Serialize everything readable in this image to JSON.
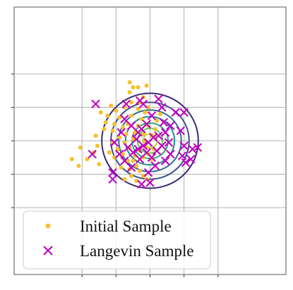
{
  "chart_data": {
    "type": "scatter",
    "title": "",
    "xlabel": "",
    "ylabel": "",
    "xlim": [
      -4,
      4
    ],
    "ylim": [
      -4,
      4
    ],
    "xticks": [
      -2,
      -1,
      0,
      1,
      2
    ],
    "yticks": [
      -2,
      -1,
      0,
      1,
      2
    ],
    "grid": true,
    "legend_position": "lower-left",
    "contours": {
      "center": [
        0,
        0
      ],
      "levels": [
        "#472c7a",
        "#3b518b",
        "#2c718e",
        "#21908d",
        "#27ad81",
        "#5cc863",
        "#aadc32"
      ],
      "radii": [
        1.42,
        1.15,
        0.92,
        0.72,
        0.53,
        0.37,
        0.21
      ],
      "line_colors": [
        "#3b2a74",
        "#3b528b",
        "#2e6f8e",
        "#21908c",
        "#2aa97e",
        "#61c75d",
        "#b5dd2b"
      ]
    },
    "series": [
      {
        "name": "Initial Sample",
        "marker": "dot",
        "color": "#f6c02a",
        "points": [
          [
            -0.6,
            1.75
          ],
          [
            -0.5,
            1.6
          ],
          [
            -0.6,
            1.45
          ],
          [
            -0.35,
            1.6
          ],
          [
            -0.1,
            1.65
          ],
          [
            -0.55,
            1.15
          ],
          [
            -0.75,
            1.0
          ],
          [
            -1.15,
            1.05
          ],
          [
            -1.25,
            0.75
          ],
          [
            -1.3,
            0.55
          ],
          [
            -1.45,
            0.85
          ],
          [
            -1.35,
            0.35
          ],
          [
            -1.0,
            0.9
          ],
          [
            -0.9,
            0.7
          ],
          [
            -1.05,
            0.5
          ],
          [
            -1.1,
            0.3
          ],
          [
            -0.8,
            0.4
          ],
          [
            -0.7,
            0.2
          ],
          [
            -0.9,
            0.1
          ],
          [
            -1.1,
            -0.05
          ],
          [
            -0.95,
            -0.25
          ],
          [
            -1.2,
            -0.35
          ],
          [
            -1.05,
            -0.5
          ],
          [
            -0.8,
            -0.4
          ],
          [
            -0.65,
            -0.6
          ],
          [
            -0.85,
            -0.8
          ],
          [
            -0.6,
            -0.85
          ],
          [
            -0.5,
            -0.6
          ],
          [
            -0.4,
            -0.75
          ],
          [
            -0.3,
            -0.9
          ],
          [
            -0.2,
            -1.05
          ],
          [
            -0.1,
            -1.15
          ],
          [
            -0.45,
            -0.45
          ],
          [
            -0.3,
            -0.3
          ],
          [
            -0.2,
            -0.5
          ],
          [
            -0.6,
            -0.2
          ],
          [
            -0.5,
            0.05
          ],
          [
            -0.45,
            0.25
          ],
          [
            -0.35,
            0.45
          ],
          [
            -0.25,
            0.65
          ],
          [
            -0.15,
            0.85
          ],
          [
            -0.05,
            1.0
          ],
          [
            -0.35,
            0.95
          ],
          [
            -0.55,
            0.75
          ],
          [
            -0.65,
            0.5
          ],
          [
            -0.2,
            0.2
          ],
          [
            -0.15,
            0.0
          ],
          [
            -0.1,
            -0.2
          ],
          [
            -0.05,
            -0.4
          ],
          [
            0.05,
            -0.55
          ],
          [
            0.1,
            -0.25
          ],
          [
            0.05,
            0.15
          ],
          [
            0.15,
            0.35
          ],
          [
            -0.05,
            0.45
          ],
          [
            0.2,
            0.6
          ],
          [
            0.3,
            0.8
          ],
          [
            -0.75,
            -0.05
          ],
          [
            -0.3,
            1.15
          ],
          [
            -0.2,
            1.3
          ],
          [
            -1.85,
            -0.55
          ],
          [
            -1.5,
            -0.7
          ],
          [
            -1.65,
            -0.35
          ],
          [
            -1.55,
            -0.15
          ],
          [
            -1.6,
            0.15
          ],
          [
            -0.55,
            -1.05
          ],
          [
            -0.4,
            -1.2
          ],
          [
            -0.75,
            -1.15
          ],
          [
            -2.3,
            -0.55
          ],
          [
            -2.1,
            -0.75
          ],
          [
            -2.05,
            -0.2
          ]
        ]
      },
      {
        "name": "Langevin Sample",
        "marker": "x",
        "color": "#bf00bf",
        "points": [
          [
            -1.6,
            1.1
          ],
          [
            -0.7,
            1.1
          ],
          [
            -0.75,
            0.65
          ],
          [
            -0.35,
            0.25
          ],
          [
            -0.1,
            0.5
          ],
          [
            0.05,
            0.75
          ],
          [
            0.35,
            1.0
          ],
          [
            0.75,
            0.85
          ],
          [
            1.0,
            0.85
          ],
          [
            0.9,
            0.3
          ],
          [
            0.6,
            0.45
          ],
          [
            0.45,
            0.25
          ],
          [
            0.4,
            0.55
          ],
          [
            0.25,
            0.15
          ],
          [
            0.1,
            0.1
          ],
          [
            -0.05,
            -0.05
          ],
          [
            -0.2,
            -0.15
          ],
          [
            -0.35,
            -0.25
          ],
          [
            -0.5,
            -0.35
          ],
          [
            -0.65,
            -0.2
          ],
          [
            -0.4,
            0.05
          ],
          [
            -0.25,
            0.35
          ],
          [
            -0.55,
            0.45
          ],
          [
            -0.85,
            0.25
          ],
          [
            -1.05,
            -0.05
          ],
          [
            -0.9,
            -0.4
          ],
          [
            -0.75,
            -0.6
          ],
          [
            -0.55,
            -0.8
          ],
          [
            -0.3,
            -0.55
          ],
          [
            -0.1,
            -0.35
          ],
          [
            0.05,
            -0.5
          ],
          [
            0.2,
            -0.3
          ],
          [
            0.35,
            -0.15
          ],
          [
            0.55,
            -0.05
          ],
          [
            0.6,
            -0.4
          ],
          [
            0.45,
            -0.6
          ],
          [
            0.15,
            -0.75
          ],
          [
            -0.05,
            -0.95
          ],
          [
            0.0,
            -1.25
          ],
          [
            -0.25,
            -1.3
          ],
          [
            -1.1,
            -0.95
          ],
          [
            -1.1,
            -1.15
          ],
          [
            -1.7,
            -0.4
          ],
          [
            0.95,
            -0.45
          ],
          [
            1.05,
            -0.65
          ],
          [
            1.2,
            -0.55
          ],
          [
            1.25,
            -0.25
          ],
          [
            1.4,
            -0.2
          ],
          [
            1.0,
            -0.15
          ],
          [
            -0.3,
            1.2
          ],
          [
            -0.2,
            1.1
          ],
          [
            0.25,
            1.25
          ]
        ]
      }
    ]
  }
}
